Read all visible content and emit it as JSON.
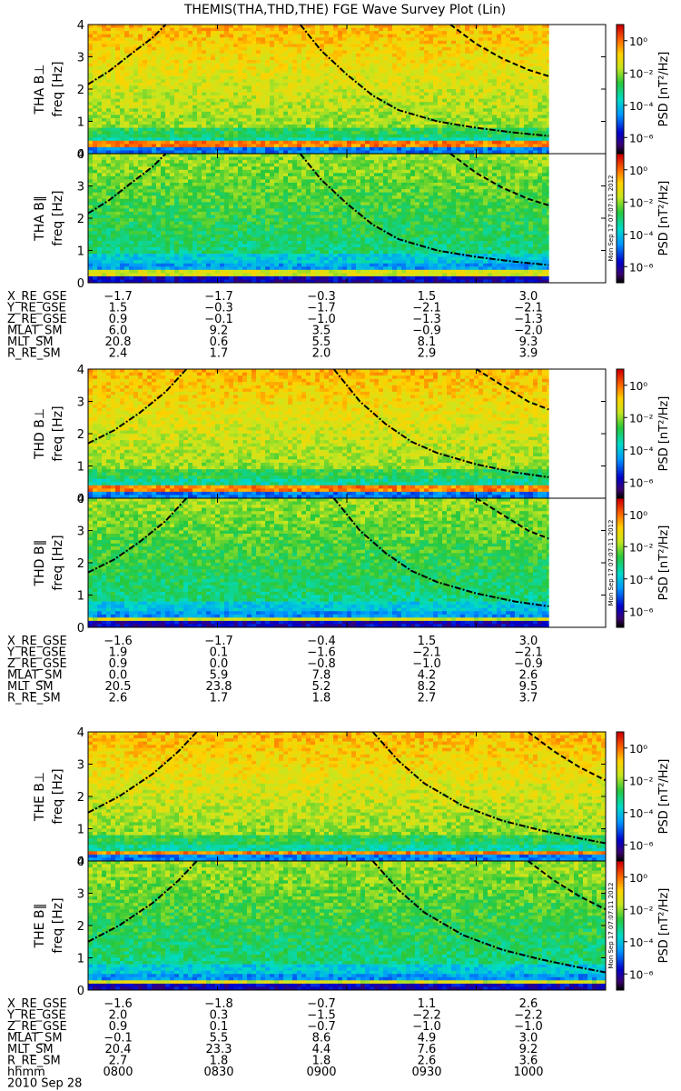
{
  "chart_data": {
    "type": "heatmap",
    "title": "THEMIS(THA,THD,THE) FGE Wave Survey Plot (Lin)",
    "colorbar": {
      "label": "PSD [nT²/Hz]",
      "scale": "log",
      "range": [
        1e-07,
        10
      ],
      "ticks": [
        "10⁰",
        "10⁻²",
        "10⁻⁴",
        "10⁻⁶"
      ],
      "tick_values": [
        1,
        0.01,
        0.0001,
        1e-06
      ]
    },
    "timestamp_label": "Mon Sep 17 07:07:11 2012",
    "freq_axis": {
      "label": "freq [Hz]",
      "range": [
        0,
        4
      ],
      "ticks": [
        "0",
        "1",
        "2",
        "3",
        "4"
      ]
    },
    "time_axis": {
      "range_hours": [
        8.0,
        10.0
      ],
      "tick_hours": [
        8.0,
        8.5,
        9.0,
        9.5,
        10.0
      ]
    },
    "probes": [
      {
        "name": "THA",
        "panels": [
          {
            "ylabel": "THA B⊥",
            "component": "perp"
          },
          {
            "ylabel": "THA B∥",
            "component": "par"
          }
        ],
        "data_end_hour": 9.78,
        "gyro_curves": [
          {
            "style": "dashdot",
            "points": [
              [
                8.0,
                2.15
              ],
              [
                8.08,
                2.55
              ],
              [
                8.16,
                3.05
              ],
              [
                8.25,
                3.6
              ],
              [
                8.3,
                4.0
              ]
            ]
          },
          {
            "style": "dashdot",
            "points": [
              [
                8.82,
                4.0
              ],
              [
                8.9,
                3.2
              ],
              [
                9.0,
                2.45
              ],
              [
                9.1,
                1.8
              ],
              [
                9.2,
                1.35
              ],
              [
                9.35,
                1.0
              ],
              [
                9.5,
                0.8
              ],
              [
                9.65,
                0.65
              ],
              [
                9.78,
                0.55
              ]
            ]
          },
          {
            "style": "dashed",
            "points": [
              [
                9.4,
                4.0
              ],
              [
                9.5,
                3.4
              ],
              [
                9.6,
                2.95
              ],
              [
                9.7,
                2.6
              ],
              [
                9.78,
                2.4
              ]
            ]
          }
        ],
        "orbit": {
          "labels": [
            "X_RE_GSE",
            "Y_RE_GSE",
            "Z_RE_GSE",
            "MLAT_SM",
            "MLT_SM",
            "R_RE_SM"
          ],
          "values": [
            [
              "-1.7",
              "-1.7",
              "-0.3",
              "1.5",
              "3.0"
            ],
            [
              "1.5",
              "-0.3",
              "-1.7",
              "-2.1",
              "-2.1"
            ],
            [
              "0.9",
              "-0.1",
              "-1.0",
              "-1.3",
              "-1.3"
            ],
            [
              "6.0",
              "9.2",
              "3.5",
              "-0.9",
              "-2.0"
            ],
            [
              "20.8",
              "0.6",
              "5.5",
              "8.1",
              "9.3"
            ],
            [
              "2.4",
              "1.7",
              "2.0",
              "2.9",
              "3.9"
            ]
          ]
        }
      },
      {
        "name": "THD",
        "panels": [
          {
            "ylabel": "THD B⊥",
            "component": "perp"
          },
          {
            "ylabel": "THD B∥",
            "component": "par"
          }
        ],
        "data_end_hour": 9.78,
        "gyro_curves": [
          {
            "style": "dashdot",
            "points": [
              [
                8.0,
                1.7
              ],
              [
                8.1,
                2.1
              ],
              [
                8.2,
                2.65
              ],
              [
                8.3,
                3.3
              ],
              [
                8.38,
                4.0
              ]
            ]
          },
          {
            "style": "dashdot",
            "points": [
              [
                8.95,
                4.0
              ],
              [
                9.05,
                3.0
              ],
              [
                9.15,
                2.3
              ],
              [
                9.25,
                1.75
              ],
              [
                9.35,
                1.4
              ],
              [
                9.5,
                1.05
              ],
              [
                9.65,
                0.8
              ],
              [
                9.78,
                0.65
              ]
            ]
          },
          {
            "style": "dashed",
            "points": [
              [
                9.5,
                4.0
              ],
              [
                9.6,
                3.5
              ],
              [
                9.7,
                3.0
              ],
              [
                9.78,
                2.75
              ]
            ]
          }
        ],
        "orbit": {
          "labels": [
            "X_RE_GSE",
            "Y_RE_GSE",
            "Z_RE_GSE",
            "MLAT_SM",
            "MLT_SM",
            "R_RE_SM"
          ],
          "values": [
            [
              "-1.6",
              "-1.7",
              "-0.4",
              "1.5",
              "3.0"
            ],
            [
              "1.9",
              "0.1",
              "-1.6",
              "-2.1",
              "-2.1"
            ],
            [
              "0.9",
              "0.0",
              "-0.8",
              "-1.0",
              "-0.9"
            ],
            [
              "0.0",
              "5.9",
              "7.8",
              "4.2",
              "2.6"
            ],
            [
              "20.5",
              "23.8",
              "5.2",
              "8.2",
              "9.5"
            ],
            [
              "2.6",
              "1.7",
              "1.8",
              "2.7",
              "3.7"
            ]
          ]
        }
      },
      {
        "name": "THE",
        "panels": [
          {
            "ylabel": "THE B⊥",
            "component": "perp"
          },
          {
            "ylabel": "THE B∥",
            "component": "par"
          }
        ],
        "data_end_hour": 10.0,
        "gyro_curves": [
          {
            "style": "dashdot",
            "points": [
              [
                8.0,
                1.5
              ],
              [
                8.12,
                2.0
              ],
              [
                8.25,
                2.7
              ],
              [
                8.35,
                3.4
              ],
              [
                8.42,
                4.0
              ]
            ]
          },
          {
            "style": "dashdot",
            "points": [
              [
                9.1,
                4.0
              ],
              [
                9.2,
                3.1
              ],
              [
                9.3,
                2.4
              ],
              [
                9.45,
                1.7
              ],
              [
                9.6,
                1.25
              ],
              [
                9.75,
                0.95
              ],
              [
                9.9,
                0.7
              ],
              [
                10.0,
                0.55
              ]
            ]
          },
          {
            "style": "dashed",
            "points": [
              [
                9.7,
                4.0
              ],
              [
                9.8,
                3.4
              ],
              [
                9.9,
                2.9
              ],
              [
                10.0,
                2.5
              ]
            ]
          }
        ],
        "orbit": {
          "labels": [
            "X_RE_GSE",
            "Y_RE_GSE",
            "Z_RE_GSE",
            "MLAT_SM",
            "MLT_SM",
            "R_RE_SM"
          ],
          "values": [
            [
              "-1.6",
              "-1.8",
              "-0.7",
              "1.1",
              "2.6"
            ],
            [
              "2.0",
              "0.3",
              "-1.5",
              "-2.2",
              "-2.2"
            ],
            [
              "0.9",
              "0.1",
              "-0.7",
              "-1.0",
              "-1.0"
            ],
            [
              "-0.1",
              "5.5",
              "8.6",
              "4.9",
              "3.0"
            ],
            [
              "20.4",
              "23.3",
              "4.4",
              "7.6",
              "9.2"
            ],
            [
              "2.7",
              "1.8",
              "1.8",
              "2.6",
              "3.6"
            ]
          ]
        }
      }
    ],
    "time_labels": {
      "label": "hhmm",
      "values": [
        "0800",
        "0830",
        "0900",
        "0930",
        "1000"
      ],
      "date": "2010 Sep 28"
    }
  }
}
